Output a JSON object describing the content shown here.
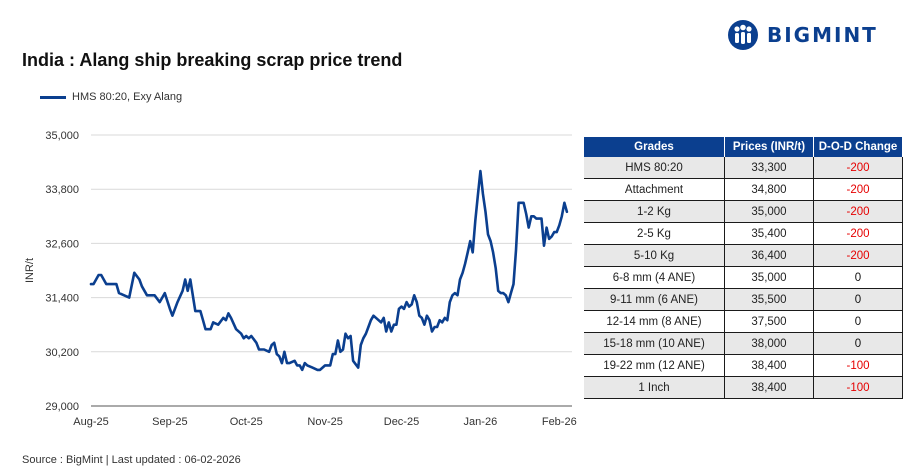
{
  "title": "India : Alang ship breaking scrap price trend",
  "logo": {
    "text": "BIGMINT",
    "icon": "bigmint-people-icon",
    "color": "#0b3f8f"
  },
  "source": "Source : BigMint | Last updated : 06-02-2026",
  "chart_data": {
    "type": "line",
    "ylabel": "INR/t",
    "ylim": [
      29000,
      35000
    ],
    "yticks": [
      "29,000",
      "30,200",
      "31,400",
      "32,600",
      "33,800",
      "35,000"
    ],
    "ytick_values": [
      29000,
      30200,
      31400,
      32600,
      33800,
      35000
    ],
    "xlim": [
      "2025-08-01",
      "2026-02-06"
    ],
    "xticks": [
      "Aug-25",
      "Sep-25",
      "Oct-25",
      "Nov-25",
      "Dec-25",
      "Jan-26",
      "Feb-26"
    ],
    "xtick_dates": [
      "2025-08-01",
      "2025-09-01",
      "2025-10-01",
      "2025-11-01",
      "2025-12-01",
      "2026-01-01",
      "2026-02-01"
    ],
    "grid": "horizontal",
    "legend": "top-left",
    "series": [
      {
        "name": "HMS 80:20, Exy Alang",
        "color": "#0b3f8f",
        "points": [
          [
            "2025-08-01",
            31700
          ],
          [
            "2025-08-02",
            31700
          ],
          [
            "2025-08-04",
            31900
          ],
          [
            "2025-08-05",
            31900
          ],
          [
            "2025-08-07",
            31700
          ],
          [
            "2025-08-11",
            31700
          ],
          [
            "2025-08-12",
            31500
          ],
          [
            "2025-08-14",
            31450
          ],
          [
            "2025-08-16",
            31400
          ],
          [
            "2025-08-18",
            31950
          ],
          [
            "2025-08-20",
            31800
          ],
          [
            "2025-08-21",
            31650
          ],
          [
            "2025-08-23",
            31450
          ],
          [
            "2025-08-26",
            31450
          ],
          [
            "2025-08-28",
            31300
          ],
          [
            "2025-08-30",
            31500
          ],
          [
            "2025-09-01",
            31150
          ],
          [
            "2025-09-02",
            31000
          ],
          [
            "2025-09-04",
            31300
          ],
          [
            "2025-09-06",
            31550
          ],
          [
            "2025-09-07",
            31800
          ],
          [
            "2025-09-08",
            31550
          ],
          [
            "2025-09-09",
            31800
          ],
          [
            "2025-09-11",
            31100
          ],
          [
            "2025-09-13",
            31100
          ],
          [
            "2025-09-14",
            30900
          ],
          [
            "2025-09-15",
            30700
          ],
          [
            "2025-09-17",
            30700
          ],
          [
            "2025-09-18",
            30850
          ],
          [
            "2025-09-20",
            30800
          ],
          [
            "2025-09-22",
            30950
          ],
          [
            "2025-09-23",
            30900
          ],
          [
            "2025-09-24",
            31050
          ],
          [
            "2025-09-25",
            30950
          ],
          [
            "2025-09-27",
            30700
          ],
          [
            "2025-09-29",
            30600
          ],
          [
            "2025-09-30",
            30500
          ],
          [
            "2025-10-01",
            30550
          ],
          [
            "2025-10-02",
            30500
          ],
          [
            "2025-10-03",
            30550
          ],
          [
            "2025-10-05",
            30400
          ],
          [
            "2025-10-06",
            30250
          ],
          [
            "2025-10-07",
            30250
          ],
          [
            "2025-10-08",
            30250
          ],
          [
            "2025-10-10",
            30200
          ],
          [
            "2025-10-11",
            30350
          ],
          [
            "2025-10-12",
            30400
          ],
          [
            "2025-10-13",
            30150
          ],
          [
            "2025-10-14",
            30100
          ],
          [
            "2025-10-15",
            29950
          ],
          [
            "2025-10-16",
            30200
          ],
          [
            "2025-10-17",
            29950
          ],
          [
            "2025-10-18",
            29950
          ],
          [
            "2025-10-20",
            30000
          ],
          [
            "2025-10-21",
            29900
          ],
          [
            "2025-10-22",
            29900
          ],
          [
            "2025-10-23",
            29800
          ],
          [
            "2025-10-24",
            29950
          ],
          [
            "2025-10-25",
            29900
          ],
          [
            "2025-10-27",
            29850
          ],
          [
            "2025-10-29",
            29800
          ],
          [
            "2025-10-30",
            29800
          ],
          [
            "2025-11-01",
            29900
          ],
          [
            "2025-11-03",
            29900
          ],
          [
            "2025-11-04",
            30150
          ],
          [
            "2025-11-05",
            30150
          ],
          [
            "2025-11-06",
            30450
          ],
          [
            "2025-11-07",
            30200
          ],
          [
            "2025-11-08",
            30250
          ],
          [
            "2025-11-09",
            30600
          ],
          [
            "2025-11-10",
            30500
          ],
          [
            "2025-11-11",
            30550
          ],
          [
            "2025-11-12",
            30000
          ],
          [
            "2025-11-14",
            29850
          ],
          [
            "2025-11-15",
            30350
          ],
          [
            "2025-11-16",
            30500
          ],
          [
            "2025-11-17",
            30600
          ],
          [
            "2025-11-18",
            30750
          ],
          [
            "2025-11-19",
            30900
          ],
          [
            "2025-11-20",
            31000
          ],
          [
            "2025-11-22",
            30900
          ],
          [
            "2025-11-23",
            30850
          ],
          [
            "2025-11-24",
            30950
          ],
          [
            "2025-11-25",
            30650
          ],
          [
            "2025-11-26",
            30850
          ],
          [
            "2025-11-27",
            30650
          ],
          [
            "2025-11-28",
            30800
          ],
          [
            "2025-11-29",
            30800
          ],
          [
            "2025-11-30",
            31150
          ],
          [
            "2025-12-01",
            31200
          ],
          [
            "2025-12-02",
            31150
          ],
          [
            "2025-12-03",
            31300
          ],
          [
            "2025-12-04",
            31200
          ],
          [
            "2025-12-05",
            31250
          ],
          [
            "2025-12-06",
            31450
          ],
          [
            "2025-12-07",
            31300
          ],
          [
            "2025-12-08",
            31000
          ],
          [
            "2025-12-09",
            30950
          ],
          [
            "2025-12-10",
            30800
          ],
          [
            "2025-12-11",
            31000
          ],
          [
            "2025-12-12",
            30900
          ],
          [
            "2025-12-13",
            30650
          ],
          [
            "2025-12-14",
            30750
          ],
          [
            "2025-12-15",
            30750
          ],
          [
            "2025-12-16",
            30900
          ],
          [
            "2025-12-17",
            30850
          ],
          [
            "2025-12-18",
            30950
          ],
          [
            "2025-12-19",
            30900
          ],
          [
            "2025-12-20",
            31300
          ],
          [
            "2025-12-21",
            31450
          ],
          [
            "2025-12-22",
            31500
          ],
          [
            "2025-12-23",
            31450
          ],
          [
            "2025-12-24",
            31800
          ],
          [
            "2025-12-25",
            31950
          ],
          [
            "2025-12-26",
            32150
          ],
          [
            "2025-12-27",
            32400
          ],
          [
            "2025-12-28",
            32650
          ],
          [
            "2025-12-29",
            32400
          ],
          [
            "2025-12-30",
            33100
          ],
          [
            "2025-12-31",
            33650
          ],
          [
            "2026-01-01",
            34200
          ],
          [
            "2026-01-02",
            33700
          ],
          [
            "2026-01-03",
            33300
          ],
          [
            "2026-01-04",
            32800
          ],
          [
            "2026-01-05",
            32650
          ],
          [
            "2026-01-06",
            32400
          ],
          [
            "2026-01-07",
            32050
          ],
          [
            "2026-01-08",
            31550
          ],
          [
            "2026-01-09",
            31500
          ],
          [
            "2026-01-10",
            31500
          ],
          [
            "2026-01-11",
            31450
          ],
          [
            "2026-01-12",
            31300
          ],
          [
            "2026-01-13",
            31500
          ],
          [
            "2026-01-14",
            31700
          ],
          [
            "2026-01-15",
            32450
          ],
          [
            "2026-01-16",
            33500
          ],
          [
            "2026-01-18",
            33500
          ],
          [
            "2026-01-19",
            33250
          ],
          [
            "2026-01-20",
            32950
          ],
          [
            "2026-01-21",
            33200
          ],
          [
            "2026-01-22",
            33200
          ],
          [
            "2026-01-23",
            33150
          ],
          [
            "2026-01-25",
            33150
          ],
          [
            "2026-01-26",
            32550
          ],
          [
            "2026-01-27",
            32950
          ],
          [
            "2026-01-28",
            32700
          ],
          [
            "2026-01-29",
            32750
          ],
          [
            "2026-01-30",
            32850
          ],
          [
            "2026-01-31",
            32850
          ],
          [
            "2026-02-01",
            33000
          ],
          [
            "2026-02-02",
            33200
          ],
          [
            "2026-02-03",
            33500
          ],
          [
            "2026-02-04",
            33300
          ]
        ]
      }
    ]
  },
  "table": {
    "headers": [
      "Grades",
      "Prices (INR/t)",
      "D-O-D Change"
    ],
    "rows": [
      [
        "HMS 80:20",
        "33,300",
        "-200"
      ],
      [
        "Attachment",
        "34,800",
        "-200"
      ],
      [
        "1-2 Kg",
        "35,000",
        "-200"
      ],
      [
        "2-5 Kg",
        "35,400",
        "-200"
      ],
      [
        "5-10 Kg",
        "36,400",
        "-200"
      ],
      [
        "6-8 mm (4 ANE)",
        "35,000",
        "0"
      ],
      [
        "9-11 mm (6 ANE)",
        "35,500",
        "0"
      ],
      [
        "12-14 mm (8 ANE)",
        "37,500",
        "0"
      ],
      [
        "15-18 mm (10 ANE)",
        "38,000",
        "0"
      ],
      [
        "19-22 mm (12 ANE)",
        "38,400",
        "-100"
      ],
      [
        "1 Inch",
        "38,400",
        "-100"
      ]
    ],
    "negative_color": "#e60000",
    "header_color": "#0b3f8f"
  }
}
